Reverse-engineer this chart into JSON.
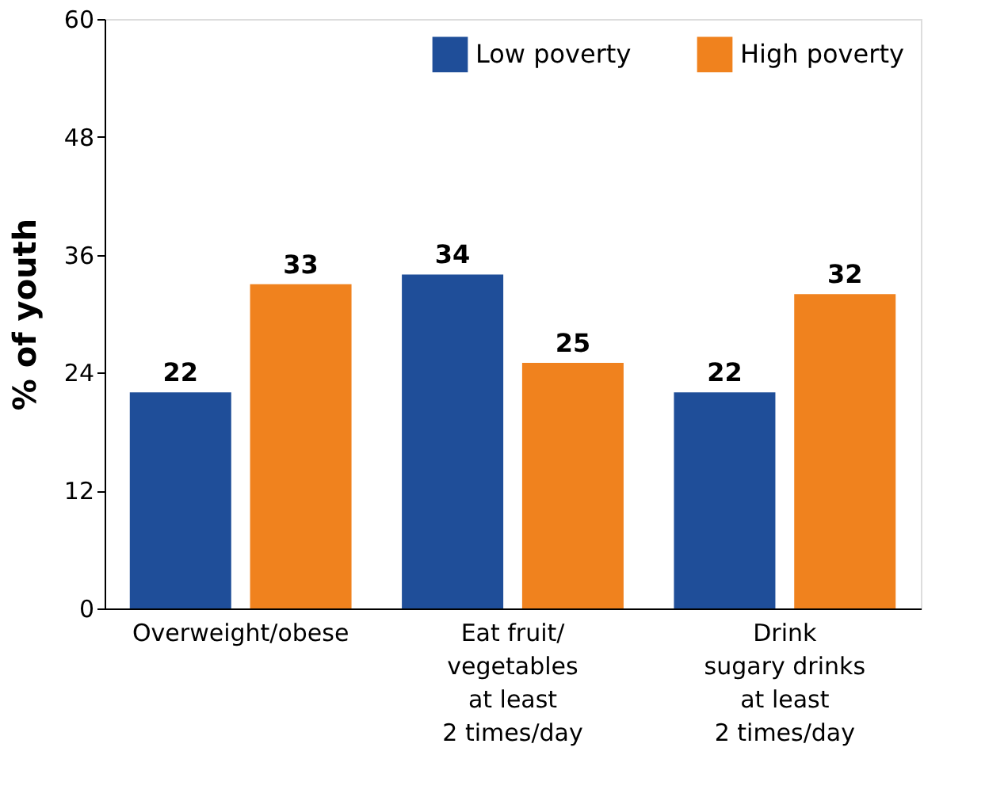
{
  "chart_data": {
    "type": "bar",
    "ylabel": "% of youth",
    "categories": [
      "Overweight/obese",
      "Eat fruit/\nvegetables\nat least\n2 times/day",
      "Drink\nsugary drinks\nat least\n2 times/day"
    ],
    "series": [
      {
        "name": "Low poverty",
        "color": "#1f4e99",
        "values": [
          22,
          34,
          22
        ]
      },
      {
        "name": "High poverty",
        "color": "#f0821e",
        "values": [
          33,
          25,
          32
        ]
      }
    ],
    "ylim": [
      0,
      60
    ],
    "yticks": [
      0,
      12,
      24,
      36,
      48,
      60
    ],
    "grid": false,
    "legend": "top right",
    "data_labels": true
  }
}
